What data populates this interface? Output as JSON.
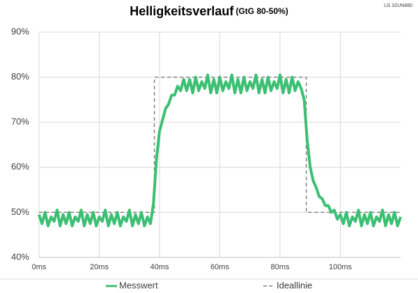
{
  "chart_data": {
    "type": "line",
    "title": "Helligkeitsverlauf",
    "subtitle": "(GtG 80-50%)",
    "annotation": "LG 32UN880",
    "xlim": [
      0,
      120
    ],
    "xticks": [
      {
        "value": 0,
        "label": "0ms"
      },
      {
        "value": 20,
        "label": "20ms"
      },
      {
        "value": 40,
        "label": "40ms"
      },
      {
        "value": 60,
        "label": "60ms"
      },
      {
        "value": 80,
        "label": "80ms"
      },
      {
        "value": 100,
        "label": "100ms"
      }
    ],
    "ylim": [
      40,
      90
    ],
    "yticks": [
      {
        "value": 40,
        "label": "40%"
      },
      {
        "value": 50,
        "label": "50%"
      },
      {
        "value": 60,
        "label": "60%"
      },
      {
        "value": 70,
        "label": "70%"
      },
      {
        "value": 80,
        "label": "80%"
      },
      {
        "value": 90,
        "label": "90%"
      }
    ],
    "grid": true,
    "legend": "bottom",
    "series": [
      {
        "name": "Messwert",
        "color": "#3cbf73",
        "dashed": false,
        "x": [
          0,
          1,
          2,
          3,
          4,
          5,
          6,
          7,
          8,
          9,
          10,
          11,
          12,
          13,
          14,
          15,
          16,
          17,
          18,
          19,
          20,
          21,
          22,
          23,
          24,
          25,
          26,
          27,
          28,
          29,
          30,
          31,
          32,
          33,
          34,
          35,
          36,
          37,
          38,
          39,
          40,
          41,
          42,
          43,
          44,
          45,
          46,
          47,
          48,
          49,
          50,
          51,
          52,
          53,
          54,
          55,
          56,
          57,
          58,
          59,
          60,
          61,
          62,
          63,
          64,
          65,
          66,
          67,
          68,
          69,
          70,
          71,
          72,
          73,
          74,
          75,
          76,
          77,
          78,
          79,
          80,
          81,
          82,
          83,
          84,
          85,
          86,
          87,
          88,
          89,
          90,
          91,
          92,
          93,
          94,
          95,
          96,
          97,
          98,
          99,
          100,
          101,
          102,
          103,
          104,
          105,
          106,
          107,
          108,
          109,
          110,
          111,
          112,
          113,
          114,
          115,
          116,
          117,
          118,
          119,
          120
        ],
        "values": [
          49.5,
          47.5,
          50,
          47,
          49,
          48,
          50.5,
          47,
          49.5,
          47.5,
          50,
          47,
          49,
          48,
          50.5,
          47,
          49.5,
          47.5,
          50,
          47,
          49,
          48,
          50.5,
          47,
          49.5,
          47.5,
          50,
          47,
          49,
          48,
          50.5,
          47,
          49.5,
          47.5,
          50,
          47,
          49,
          47.5,
          52,
          62,
          68,
          70.5,
          73,
          74,
          76,
          76,
          78,
          77,
          79.5,
          77,
          79.5,
          76.5,
          80,
          77,
          79,
          77.5,
          80.5,
          76.5,
          79.5,
          76.5,
          80,
          77,
          79,
          77.5,
          80.5,
          76.5,
          79.5,
          76.5,
          80,
          77,
          79,
          77.5,
          80.5,
          76.5,
          79.5,
          76.5,
          80,
          77,
          79,
          77.5,
          80.5,
          76.5,
          79.5,
          76.5,
          80,
          77,
          79,
          77.5,
          75,
          66,
          60,
          57,
          55.5,
          53.5,
          53,
          51.5,
          51.5,
          50,
          50.5,
          48.5,
          49.5,
          47.5,
          50,
          47,
          49,
          48,
          50.5,
          47,
          49.5,
          47.5,
          50,
          47,
          49,
          48,
          50.5,
          47,
          49.5,
          47.5,
          50,
          47,
          49
        ]
      },
      {
        "name": "Ideallinie",
        "color": "#808080",
        "dashed": true,
        "x": [
          0,
          38.3,
          38.3,
          88.7,
          88.7,
          120
        ],
        "values": [
          50,
          50,
          80,
          80,
          50,
          50
        ]
      }
    ]
  }
}
